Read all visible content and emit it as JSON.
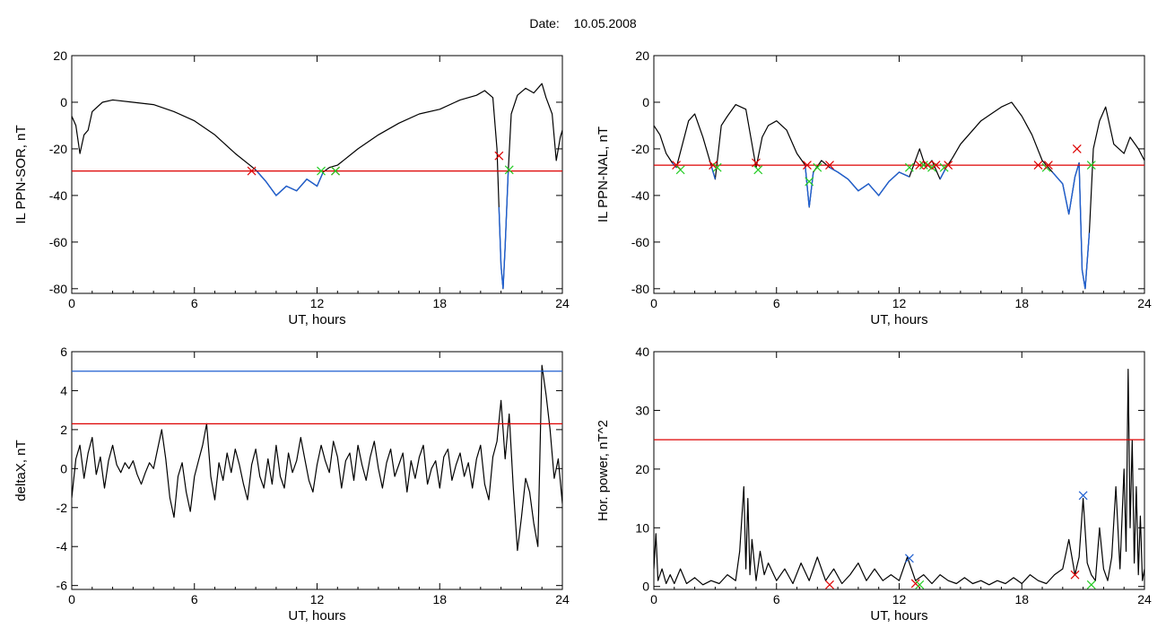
{
  "page": {
    "date_label": "Date:",
    "date_value": "10.05.2008"
  },
  "chart_data": [
    {
      "type": "line",
      "xlabel": "UT, hours",
      "ylabel": "IL PPN-SOR, nT",
      "xlim": [
        0,
        24
      ],
      "ylim": [
        -82,
        20
      ],
      "xticks": [
        0,
        6,
        12,
        18,
        24
      ],
      "yticks": [
        20,
        0,
        -20,
        -40,
        -60,
        -80
      ],
      "threshold": {
        "value": -29.5,
        "color": "#dd0000"
      },
      "series": [
        {
          "role": "signal",
          "color": "#000000",
          "x": [
            0,
            0.2,
            0.4,
            0.6,
            0.8,
            1,
            1.5,
            2,
            3,
            4,
            5,
            6,
            7,
            8,
            9,
            9.5,
            10,
            10.5,
            11,
            11.5,
            12,
            12.3,
            12.6,
            13,
            14,
            15,
            16,
            17,
            18,
            19,
            19.8,
            20.2,
            20.6,
            20.8,
            20.9,
            21.0,
            21.1,
            21.2,
            21.35,
            21.5,
            21.8,
            22.2,
            22.6,
            23,
            23.2,
            23.5,
            23.7,
            23.9,
            24
          ],
          "y": [
            -6,
            -10,
            -22,
            -14,
            -12,
            -4,
            0,
            1,
            0,
            -1,
            -4,
            -8,
            -14,
            -22,
            -29,
            -34,
            -40,
            -36,
            -38,
            -33,
            -36,
            -30,
            -28,
            -27,
            -20,
            -14,
            -9,
            -5,
            -3,
            1,
            3,
            5,
            2,
            -20,
            -45,
            -70,
            -80,
            -62,
            -30,
            -5,
            3,
            6,
            4,
            8,
            2,
            -5,
            -25,
            -15,
            -12
          ]
        }
      ],
      "markers": [
        {
          "x": 8.8,
          "y": -29.5,
          "color": "#dd0000"
        },
        {
          "x": 12.2,
          "y": -29.5,
          "color": "#22cc22"
        },
        {
          "x": 12.9,
          "y": -29.5,
          "color": "#dd0000"
        },
        {
          "x": 12.9,
          "y": -29.5,
          "color": "#22cc22"
        },
        {
          "x": 20.9,
          "y": -23,
          "color": "#dd0000"
        },
        {
          "x": 21.4,
          "y": -29,
          "color": "#22cc22"
        }
      ]
    },
    {
      "type": "line",
      "xlabel": "UT, hours",
      "ylabel": "IL PPN-NAL, nT",
      "xlim": [
        0,
        24
      ],
      "ylim": [
        -82,
        20
      ],
      "xticks": [
        0,
        6,
        12,
        18,
        24
      ],
      "yticks": [
        20,
        0,
        -20,
        -40,
        -60,
        -80
      ],
      "threshold": {
        "value": -27,
        "color": "#dd0000"
      },
      "series": [
        {
          "role": "signal",
          "color": "#000000",
          "x": [
            0,
            0.3,
            0.6,
            0.9,
            1.1,
            1.4,
            1.7,
            2.0,
            2.4,
            2.8,
            3.0,
            3.3,
            3.6,
            4.0,
            4.5,
            5.0,
            5.3,
            5.6,
            6.0,
            6.5,
            7.0,
            7.4,
            7.6,
            7.8,
            8.2,
            8.6,
            9,
            9.5,
            10,
            10.5,
            11,
            11.5,
            12,
            12.5,
            13,
            13.3,
            13.6,
            14.0,
            14.3,
            14.6,
            15,
            16,
            17,
            17.5,
            18,
            18.5,
            19,
            19.5,
            20,
            20.3,
            20.6,
            20.8,
            20.95,
            21.1,
            21.3,
            21.5,
            21.8,
            22.1,
            22.5,
            23,
            23.3,
            23.7,
            24
          ],
          "y": [
            -10,
            -14,
            -22,
            -26,
            -28,
            -18,
            -8,
            -5,
            -15,
            -27,
            -33,
            -10,
            -6,
            -1,
            -3,
            -28,
            -15,
            -10,
            -8,
            -12,
            -22,
            -27,
            -45,
            -30,
            -25,
            -28,
            -30,
            -33,
            -38,
            -35,
            -40,
            -34,
            -30,
            -32,
            -20,
            -28,
            -25,
            -33,
            -28,
            -24,
            -18,
            -8,
            -2,
            0,
            -6,
            -14,
            -25,
            -30,
            -35,
            -48,
            -32,
            -26,
            -72,
            -80,
            -56,
            -20,
            -8,
            -2,
            -18,
            -22,
            -15,
            -20,
            -25
          ]
        }
      ],
      "markers": [
        {
          "x": 1.1,
          "y": -27,
          "color": "#dd0000"
        },
        {
          "x": 1.3,
          "y": -29,
          "color": "#22cc22"
        },
        {
          "x": 2.9,
          "y": -27,
          "color": "#dd0000"
        },
        {
          "x": 3.1,
          "y": -28,
          "color": "#22cc22"
        },
        {
          "x": 5.0,
          "y": -26,
          "color": "#dd0000"
        },
        {
          "x": 5.1,
          "y": -29,
          "color": "#22cc22"
        },
        {
          "x": 7.5,
          "y": -27,
          "color": "#dd0000"
        },
        {
          "x": 7.6,
          "y": -34,
          "color": "#22cc22"
        },
        {
          "x": 8.0,
          "y": -28,
          "color": "#22cc22"
        },
        {
          "x": 8.6,
          "y": -27,
          "color": "#dd0000"
        },
        {
          "x": 12.5,
          "y": -28,
          "color": "#22cc22"
        },
        {
          "x": 13.0,
          "y": -27,
          "color": "#dd0000"
        },
        {
          "x": 13.2,
          "y": -27,
          "color": "#22cc22"
        },
        {
          "x": 13.4,
          "y": -27,
          "color": "#dd0000"
        },
        {
          "x": 13.6,
          "y": -28,
          "color": "#22cc22"
        },
        {
          "x": 13.8,
          "y": -27,
          "color": "#dd0000"
        },
        {
          "x": 14.2,
          "y": -28,
          "color": "#22cc22"
        },
        {
          "x": 14.4,
          "y": -27,
          "color": "#dd0000"
        },
        {
          "x": 18.8,
          "y": -27,
          "color": "#dd0000"
        },
        {
          "x": 19.2,
          "y": -28,
          "color": "#22cc22"
        },
        {
          "x": 19.3,
          "y": -27,
          "color": "#dd0000"
        },
        {
          "x": 20.7,
          "y": -20,
          "color": "#dd0000"
        },
        {
          "x": 21.4,
          "y": -27,
          "color": "#22cc22"
        }
      ]
    },
    {
      "type": "line",
      "xlabel": "UT, hours",
      "ylabel": "deltaX, nT",
      "xlim": [
        0,
        24
      ],
      "ylim": [
        -6.2,
        6
      ],
      "xticks": [
        0,
        6,
        12,
        18,
        24
      ],
      "yticks": [
        6,
        4,
        2,
        0,
        -2,
        -4,
        -6
      ],
      "thresholds": [
        {
          "value": 5.0,
          "color": "#1f5fd0"
        },
        {
          "value": 2.3,
          "color": "#dd0000"
        }
      ],
      "series": [
        {
          "role": "signal",
          "color": "#000000",
          "x": [
            0,
            0.2,
            0.4,
            0.6,
            0.8,
            1.0,
            1.2,
            1.4,
            1.6,
            1.8,
            2.0,
            2.2,
            2.4,
            2.6,
            2.8,
            3.0,
            3.2,
            3.4,
            3.6,
            3.8,
            4.0,
            4.2,
            4.4,
            4.6,
            4.8,
            5.0,
            5.2,
            5.4,
            5.6,
            5.8,
            6.0,
            6.2,
            6.4,
            6.6,
            6.8,
            7.0,
            7.2,
            7.4,
            7.6,
            7.8,
            8.0,
            8.2,
            8.4,
            8.6,
            8.8,
            9.0,
            9.2,
            9.4,
            9.6,
            9.8,
            10.0,
            10.2,
            10.4,
            10.6,
            10.8,
            11.0,
            11.2,
            11.4,
            11.6,
            11.8,
            12.0,
            12.2,
            12.4,
            12.6,
            12.8,
            13.0,
            13.2,
            13.4,
            13.6,
            13.8,
            14.0,
            14.2,
            14.4,
            14.6,
            14.8,
            15.0,
            15.2,
            15.4,
            15.6,
            15.8,
            16.0,
            16.2,
            16.4,
            16.6,
            16.8,
            17.0,
            17.2,
            17.4,
            17.6,
            17.8,
            18.0,
            18.2,
            18.4,
            18.6,
            18.8,
            19.0,
            19.2,
            19.4,
            19.6,
            19.8,
            20.0,
            20.2,
            20.4,
            20.6,
            20.8,
            21.0,
            21.2,
            21.4,
            21.6,
            21.8,
            22.0,
            22.2,
            22.4,
            22.6,
            22.8,
            23.0,
            23.2,
            23.4,
            23.6,
            23.8,
            24.0
          ],
          "y": [
            -1.5,
            0.5,
            1.2,
            -0.5,
            0.8,
            1.6,
            -0.3,
            0.6,
            -1.0,
            0.4,
            1.2,
            0.2,
            -0.2,
            0.3,
            0.0,
            0.4,
            -0.3,
            -0.8,
            -0.2,
            0.3,
            0.0,
            1.0,
            2.0,
            0.5,
            -1.5,
            -2.5,
            -0.4,
            0.3,
            -1.2,
            -2.2,
            -0.4,
            0.4,
            1.2,
            2.3,
            -0.4,
            -1.6,
            0.3,
            -0.6,
            0.8,
            -0.2,
            1.0,
            0.2,
            -0.8,
            -1.6,
            0.2,
            1.0,
            -0.4,
            -1.0,
            0.5,
            -0.8,
            1.2,
            -0.4,
            -1.0,
            0.8,
            -0.2,
            0.4,
            1.6,
            0.5,
            -0.6,
            -1.2,
            0.2,
            1.2,
            0.4,
            -0.2,
            1.4,
            0.6,
            -1.0,
            0.4,
            0.8,
            -0.6,
            1.2,
            0.2,
            -0.6,
            0.6,
            1.4,
            0.0,
            -1.0,
            0.3,
            1.0,
            -0.4,
            0.2,
            0.8,
            -1.2,
            0.4,
            -0.5,
            0.6,
            1.2,
            -0.8,
            0.0,
            0.4,
            -1.0,
            0.6,
            1.0,
            -0.6,
            0.2,
            0.8,
            -0.4,
            0.3,
            -1.0,
            0.5,
            1.2,
            -0.8,
            -1.6,
            0.6,
            1.4,
            3.5,
            0.5,
            2.8,
            -1.0,
            -4.2,
            -2.5,
            -0.5,
            -1.2,
            -2.8,
            -4.0,
            5.3,
            3.8,
            2.0,
            -0.5,
            0.5,
            -1.8
          ]
        }
      ]
    },
    {
      "type": "line",
      "xlabel": "UT, hours",
      "ylabel": "Hor. power, nT^2",
      "xlim": [
        0,
        24
      ],
      "ylim": [
        -0.5,
        40
      ],
      "xticks": [
        0,
        6,
        12,
        18,
        24
      ],
      "yticks": [
        40,
        30,
        20,
        10,
        0
      ],
      "threshold": {
        "value": 25,
        "color": "#dd0000"
      },
      "series": [
        {
          "role": "signal",
          "color": "#000000",
          "x": [
            0,
            0.1,
            0.2,
            0.4,
            0.6,
            0.8,
            1.0,
            1.3,
            1.6,
            2.0,
            2.4,
            2.8,
            3.2,
            3.6,
            4.0,
            4.2,
            4.4,
            4.5,
            4.6,
            4.7,
            4.8,
            5.0,
            5.2,
            5.4,
            5.6,
            6.0,
            6.4,
            6.8,
            7.2,
            7.6,
            8.0,
            8.4,
            8.8,
            9.2,
            9.6,
            10.0,
            10.4,
            10.8,
            11.2,
            11.6,
            12.0,
            12.4,
            12.6,
            12.8,
            13.2,
            13.6,
            14.0,
            14.4,
            14.8,
            15.2,
            15.6,
            16.0,
            16.4,
            16.8,
            17.2,
            17.6,
            18.0,
            18.4,
            18.8,
            19.2,
            19.6,
            20.0,
            20.3,
            20.6,
            20.8,
            21.0,
            21.2,
            21.4,
            21.6,
            21.8,
            22.0,
            22.2,
            22.4,
            22.6,
            22.8,
            23.0,
            23.1,
            23.2,
            23.3,
            23.4,
            23.5,
            23.6,
            23.7,
            23.8,
            23.9,
            24.0
          ],
          "y": [
            3,
            9,
            1,
            3,
            0.5,
            2,
            0.5,
            3,
            0.5,
            1.5,
            0.3,
            1,
            0.5,
            2,
            1,
            6,
            17,
            3,
            15,
            2,
            8,
            1,
            6,
            2,
            4,
            1,
            3,
            0.5,
            4,
            1,
            5,
            1,
            3,
            0.5,
            2,
            4,
            1,
            3,
            1,
            2,
            1,
            5,
            3,
            1,
            2,
            0.5,
            2,
            1,
            0.5,
            1.5,
            0.5,
            1,
            0.3,
            1,
            0.5,
            1.5,
            0.5,
            2,
            1,
            0.5,
            2,
            3,
            8,
            2,
            5,
            15,
            4,
            2,
            1,
            10,
            3,
            1,
            5,
            17,
            3,
            20,
            6,
            37,
            10,
            25,
            4,
            17,
            2,
            12,
            1,
            3
          ]
        }
      ],
      "markers": [
        {
          "x": 8.6,
          "y": 0.3,
          "color": "#dd0000"
        },
        {
          "x": 12.5,
          "y": 4.8,
          "color": "#1f5fd0"
        },
        {
          "x": 12.8,
          "y": 0.5,
          "color": "#dd0000"
        },
        {
          "x": 13.0,
          "y": 0.3,
          "color": "#22cc22"
        },
        {
          "x": 20.6,
          "y": 2.0,
          "color": "#dd0000"
        },
        {
          "x": 21.0,
          "y": 15.5,
          "color": "#1f5fd0"
        },
        {
          "x": 21.4,
          "y": 0.3,
          "color": "#22cc22"
        }
      ]
    }
  ]
}
